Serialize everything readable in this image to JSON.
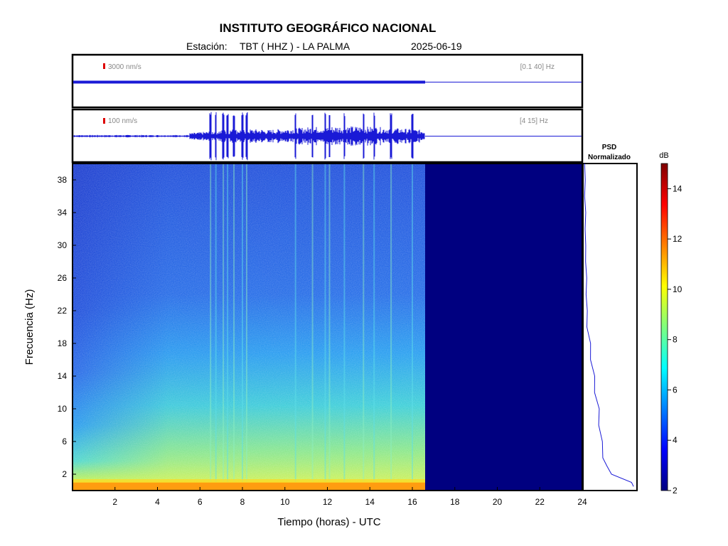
{
  "header": {
    "title": "INSTITUTO GEOGRÁFICO NACIONAL",
    "station_label": "Estación:",
    "station": "TBT ( HHZ ) - LA PALMA",
    "date": "2025-06-19"
  },
  "traces": [
    {
      "scale_label": "3000 nm/s",
      "band_label": "[0.1 40] Hz"
    },
    {
      "scale_label": "100 nm/s",
      "band_label": "[4 15] Hz"
    }
  ],
  "psd_panel": {
    "title_line1": "PSD",
    "title_line2": "Normalizado"
  },
  "colorbar": {
    "unit": "dB",
    "ticks": [
      2,
      4,
      6,
      8,
      10,
      12,
      14
    ],
    "range": [
      2,
      15
    ]
  },
  "colors": {
    "trace": "#1a1ad6",
    "no_data": "#000080",
    "accent_marker": "#dd0000"
  },
  "chart_data": {
    "type": "heatmap",
    "title": "INSTITUTO GEOGRÁFICO NACIONAL",
    "xlabel": "Tiempo (horas) - UTC",
    "ylabel": "Frecuencia  (Hz)",
    "xlim": [
      0,
      24
    ],
    "ylim": [
      0,
      40
    ],
    "x_ticks": [
      2,
      4,
      6,
      8,
      10,
      12,
      14,
      16,
      18,
      20,
      22,
      24
    ],
    "y_ticks": [
      2,
      6,
      10,
      14,
      18,
      22,
      26,
      30,
      34,
      38
    ],
    "data_end_hour": 16.6,
    "transient_hours": [
      6.5,
      6.75,
      7.1,
      7.3,
      7.6,
      8.0,
      8.2,
      10.5,
      11.3,
      11.9,
      12.1,
      12.8,
      13.7,
      14.2,
      15.0,
      16.0
    ],
    "psd_profile": {
      "freq": [
        0.5,
        1,
        2,
        3,
        4,
        6,
        8,
        10,
        12,
        14,
        16,
        18,
        20,
        22,
        24,
        26,
        28,
        30,
        32,
        34,
        36,
        38,
        40
      ],
      "value": [
        0.98,
        0.9,
        0.55,
        0.42,
        0.38,
        0.33,
        0.3,
        0.27,
        0.22,
        0.18,
        0.14,
        0.1,
        0.07,
        0.05,
        0.04,
        0.04,
        0.03,
        0.02,
        0.02,
        0.02,
        0.01,
        0.01,
        0.01
      ]
    }
  }
}
